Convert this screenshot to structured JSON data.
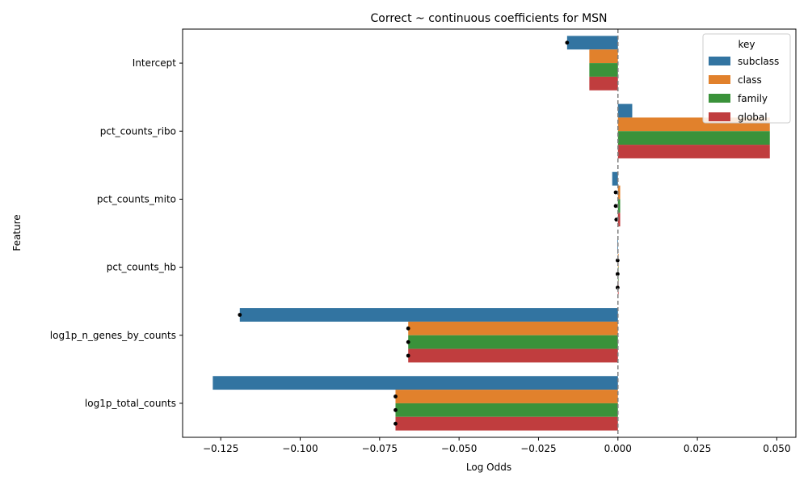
{
  "chart_data": {
    "type": "bar",
    "orientation": "horizontal",
    "title": "Correct ~ continuous coefficients for MSN",
    "xlabel": "Log Odds",
    "ylabel": "Feature",
    "xlim": [
      -0.137,
      0.056
    ],
    "xticks": [
      -0.125,
      -0.1,
      -0.075,
      -0.05,
      -0.025,
      0.0,
      0.025,
      0.05
    ],
    "xtick_labels": [
      "−0.125",
      "−0.100",
      "−0.075",
      "−0.050",
      "−0.025",
      "0.000",
      "0.025",
      "0.050"
    ],
    "categories": [
      "Intercept",
      "pct_counts_ribo",
      "pct_counts_mito",
      "pct_counts_hb",
      "log1p_n_genes_by_counts",
      "log1p_total_counts"
    ],
    "series": [
      {
        "name": "subclass",
        "color": "#3274a1",
        "values": [
          -0.016,
          0.0045,
          -0.0018,
          -0.0002,
          -0.119,
          -0.1275
        ]
      },
      {
        "name": "class",
        "color": "#e1812c",
        "values": [
          -0.009,
          0.0478,
          0.0007,
          0.0001,
          -0.066,
          -0.07
        ]
      },
      {
        "name": "family",
        "color": "#3a923a",
        "values": [
          -0.009,
          0.0478,
          0.0007,
          0.0001,
          -0.066,
          -0.07
        ]
      },
      {
        "name": "global",
        "color": "#c03d3e",
        "values": [
          -0.009,
          0.0478,
          0.0007,
          0.0001,
          -0.066,
          -0.07
        ]
      }
    ],
    "error_points": [
      [
        -0.016,
        null,
        null,
        null
      ],
      [
        null,
        null,
        null,
        null
      ],
      [
        null,
        -0.0007,
        -0.0007,
        -0.0005
      ],
      [
        null,
        -0.0001,
        -0.0001,
        -0.0001
      ],
      [
        -0.119,
        -0.066,
        -0.066,
        -0.066
      ],
      [
        null,
        -0.07,
        -0.07,
        -0.07
      ]
    ],
    "reference_line": 0.0,
    "legend": {
      "title": "key",
      "position": "top-right"
    },
    "grid": false
  }
}
